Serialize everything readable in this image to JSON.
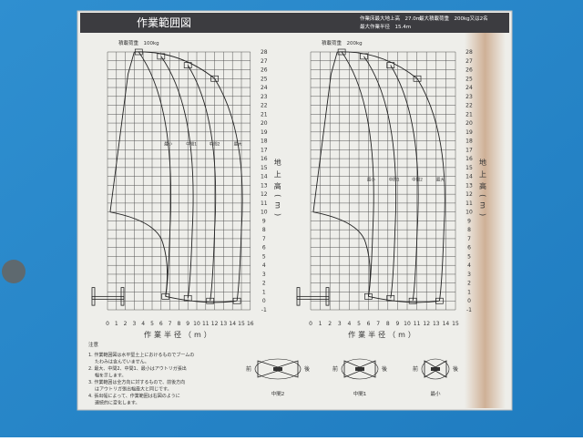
{
  "header": {
    "title": "作業範囲図",
    "specs": [
      "作業床最大地上高　27.0m",
      "最大積載荷重　200kg又は2名",
      "最大作業半径　15.4m"
    ]
  },
  "charts": [
    {
      "load": "積載荷重　100kg",
      "xticks": [
        0,
        1,
        2,
        3,
        4,
        5,
        6,
        7,
        8,
        9,
        10,
        11,
        12,
        13,
        14,
        15,
        16
      ],
      "yticks": [
        -1,
        0,
        1,
        2,
        3,
        4,
        5,
        6,
        7,
        8,
        9,
        10,
        11,
        12,
        13,
        14,
        15,
        16,
        17,
        18,
        19,
        20,
        21,
        22,
        23,
        24,
        25,
        26,
        27,
        28
      ],
      "y_label": "地上高(m)",
      "x_label": "作業半径（m）",
      "curve_labels": [
        "最小",
        "中間1",
        "中間2",
        "最大"
      ]
    },
    {
      "load": "積載荷重　200kg",
      "xticks": [
        0,
        1,
        2,
        3,
        4,
        5,
        6,
        7,
        8,
        9,
        10,
        11,
        12,
        13,
        14,
        15
      ],
      "yticks": [
        -1,
        0,
        1,
        2,
        3,
        4,
        5,
        6,
        7,
        8,
        9,
        10,
        11,
        12,
        13,
        14,
        15,
        16,
        17,
        18,
        19,
        20,
        21,
        22,
        23,
        24,
        25,
        26,
        27,
        28
      ],
      "y_label": "地上高(m)",
      "x_label": "作業半径（m）",
      "curve_labels": [
        "最小",
        "中間1",
        "中間2",
        "最大"
      ]
    }
  ],
  "notes": {
    "heading": "注意",
    "items": [
      [
        "1.  作業範囲図は水平堅土上におけるものでブームの",
        "たわみは含んでいません。"
      ],
      [
        "2.  最大、中間2、中間1、最小はアウトリガ張出",
        "幅を示します。"
      ],
      [
        "3.  作業範囲は全方向に対するもので、前後方向",
        "はアウトリガ張出幅最大と同じです。"
      ],
      [
        "4.  張出幅によって、作業範囲は右図のように",
        "連続的に変化します。"
      ]
    ]
  },
  "outriggers": [
    {
      "label": "中間2",
      "front": "前",
      "back": "後"
    },
    {
      "label": "中間1",
      "front": "前",
      "back": "後"
    },
    {
      "label": "最小",
      "front": "前",
      "back": "後"
    }
  ]
}
